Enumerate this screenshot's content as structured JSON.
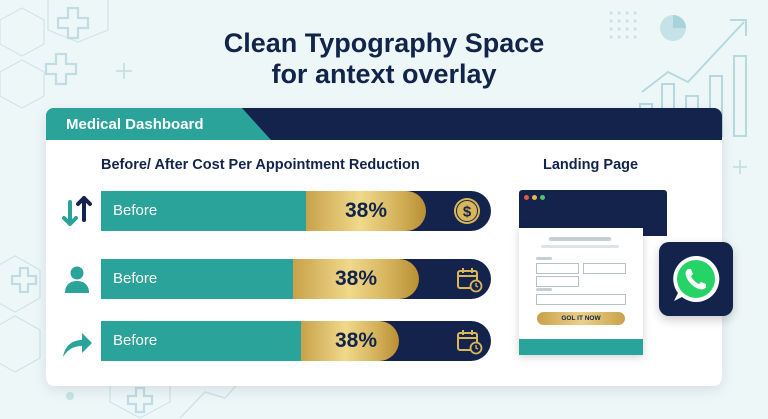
{
  "headline": {
    "line1": "Clean Typography Space",
    "line2": "for antext overlay"
  },
  "dashboard": {
    "header_tab": "Medical Dashboard",
    "cost_section_title": "Before/ After Cost Per Appointment Reduction",
    "landing_section_title": "Landing Page"
  },
  "rows": [
    {
      "label": "Before",
      "percent": "38%",
      "row_icon": "up-down-arrows-icon",
      "end_icon": "dollar-coin-icon"
    },
    {
      "label": "Before",
      "percent": "38%",
      "row_icon": "person-icon",
      "end_icon": "calendar-clock-icon"
    },
    {
      "label": "Before",
      "percent": "38%",
      "row_icon": "share-arrow-icon",
      "end_icon": "calendar-clock-icon"
    }
  ],
  "landing_page": {
    "cta_label": "GOL IT NOW"
  },
  "icons": {
    "chat_app": "whatsapp-icon",
    "background": [
      "medical-cross-icon",
      "pie-chart-icon",
      "line-chart-arrow-icon",
      "bar-chart-icon",
      "hexagon-pattern"
    ]
  },
  "colors": {
    "navy": "#13234b",
    "teal": "#2aa39a",
    "gold": "#d6b45e",
    "background": "#eef7f8",
    "whatsapp_green": "#25d366"
  }
}
